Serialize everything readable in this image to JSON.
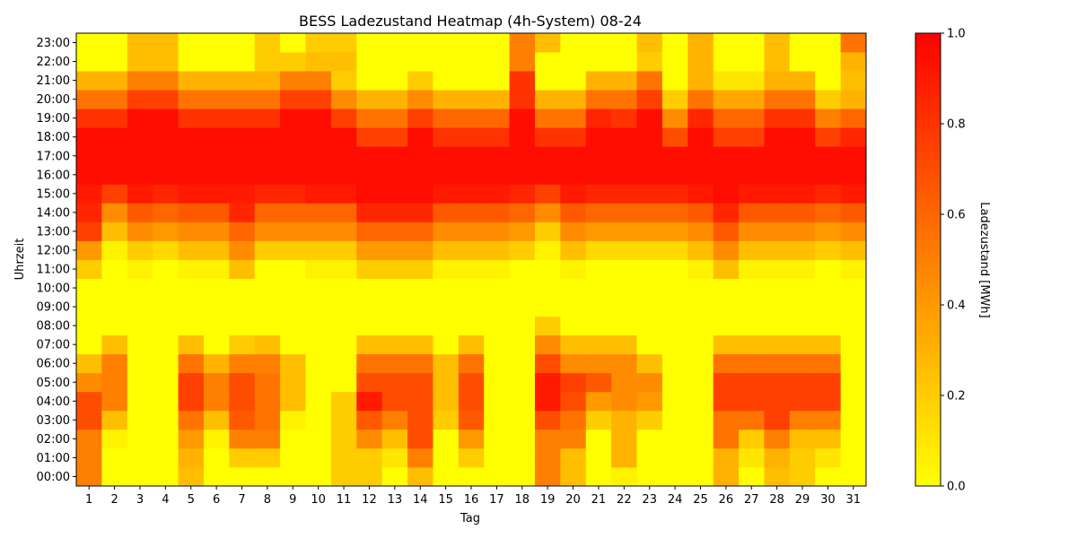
{
  "chart_data": {
    "type": "heatmap",
    "title": "BESS Ladezustand Heatmap (4h-System) 08-24",
    "xlabel": "Tag",
    "ylabel": "Uhrzeit",
    "colorbar_label": "Ladezustand [MWh]",
    "colorbar_ticks": [
      "0.0",
      "0.2",
      "0.4",
      "0.6",
      "0.8",
      "1.0"
    ],
    "vmin": 0.0,
    "vmax": 1.0,
    "colormap": [
      "#ffff00",
      "#ff0000"
    ],
    "x_categories": [
      "1",
      "2",
      "3",
      "4",
      "5",
      "6",
      "7",
      "8",
      "9",
      "10",
      "11",
      "12",
      "13",
      "14",
      "15",
      "16",
      "17",
      "18",
      "19",
      "20",
      "21",
      "22",
      "23",
      "24",
      "25",
      "26",
      "27",
      "28",
      "29",
      "30",
      "31"
    ],
    "y_categories": [
      "00:00",
      "01:00",
      "02:00",
      "03:00",
      "04:00",
      "05:00",
      "06:00",
      "07:00",
      "08:00",
      "09:00",
      "10:00",
      "11:00",
      "12:00",
      "13:00",
      "14:00",
      "15:00",
      "16:00",
      "17:00",
      "18:00",
      "19:00",
      "20:00",
      "21:00",
      "22:00",
      "23:00"
    ],
    "values": [
      [
        0.5,
        0,
        0,
        0,
        0.25,
        0,
        0,
        0,
        0,
        0,
        0.2,
        0.2,
        0,
        0.25,
        0,
        0,
        0,
        0,
        0.5,
        0.25,
        0,
        0.05,
        0,
        0,
        0,
        0.3,
        0,
        0.25,
        0.2,
        0,
        0
      ],
      [
        0.5,
        0,
        0,
        0,
        0.3,
        0,
        0.2,
        0.2,
        0,
        0,
        0.2,
        0.2,
        0.1,
        0.5,
        0,
        0.2,
        0,
        0,
        0.5,
        0.25,
        0,
        0.3,
        0,
        0,
        0,
        0.3,
        0.1,
        0.3,
        0.2,
        0.1,
        0
      ],
      [
        0.5,
        0.05,
        0,
        0,
        0.4,
        0.05,
        0.5,
        0.5,
        0,
        0,
        0.2,
        0.45,
        0.25,
        0.7,
        0,
        0.4,
        0,
        0,
        0.5,
        0.5,
        0,
        0.3,
        0,
        0,
        0,
        0.55,
        0.2,
        0.5,
        0.25,
        0.25,
        0
      ],
      [
        0.7,
        0.25,
        0,
        0,
        0.55,
        0.25,
        0.65,
        0.55,
        0.05,
        0,
        0.2,
        0.65,
        0.5,
        0.7,
        0.2,
        0.65,
        0,
        0,
        0.7,
        0.55,
        0.2,
        0.3,
        0.2,
        0,
        0,
        0.55,
        0.55,
        0.75,
        0.5,
        0.5,
        0
      ],
      [
        0.7,
        0.5,
        0,
        0,
        0.75,
        0.5,
        0.7,
        0.55,
        0.25,
        0,
        0.2,
        0.9,
        0.7,
        0.7,
        0.25,
        0.7,
        0,
        0,
        0.9,
        0.7,
        0.4,
        0.45,
        0.4,
        0,
        0,
        0.75,
        0.75,
        0.75,
        0.75,
        0.75,
        0
      ],
      [
        0.45,
        0.5,
        0,
        0,
        0.75,
        0.5,
        0.7,
        0.55,
        0.25,
        0,
        0,
        0.7,
        0.7,
        0.7,
        0.25,
        0.7,
        0,
        0,
        0.9,
        0.75,
        0.65,
        0.45,
        0.45,
        0,
        0,
        0.75,
        0.75,
        0.75,
        0.75,
        0.75,
        0
      ],
      [
        0.25,
        0.5,
        0,
        0,
        0.55,
        0.3,
        0.5,
        0.5,
        0.25,
        0,
        0,
        0.55,
        0.55,
        0.55,
        0.25,
        0.55,
        0,
        0,
        0.7,
        0.45,
        0.45,
        0.45,
        0.25,
        0,
        0,
        0.55,
        0.55,
        0.55,
        0.55,
        0.55,
        0
      ],
      [
        0,
        0.25,
        0,
        0,
        0.25,
        0,
        0.2,
        0.25,
        0,
        0,
        0,
        0.25,
        0.25,
        0.25,
        0,
        0.25,
        0,
        0,
        0.45,
        0.25,
        0.25,
        0.25,
        0,
        0,
        0,
        0.25,
        0.25,
        0.25,
        0.25,
        0.25,
        0
      ],
      [
        0,
        0,
        0,
        0,
        0,
        0,
        0,
        0,
        0,
        0,
        0,
        0,
        0,
        0,
        0,
        0,
        0,
        0,
        0.2,
        0,
        0,
        0,
        0,
        0,
        0,
        0,
        0,
        0,
        0,
        0,
        0
      ],
      [
        0,
        0,
        0,
        0,
        0,
        0,
        0,
        0,
        0,
        0,
        0,
        0,
        0,
        0,
        0,
        0,
        0,
        0,
        0,
        0,
        0,
        0,
        0,
        0,
        0,
        0,
        0,
        0,
        0,
        0,
        0
      ],
      [
        0,
        0,
        0,
        0,
        0,
        0,
        0,
        0,
        0,
        0,
        0,
        0,
        0,
        0,
        0,
        0,
        0,
        0,
        0,
        0,
        0,
        0,
        0,
        0,
        0,
        0,
        0,
        0,
        0,
        0,
        0
      ],
      [
        0.2,
        0,
        0.05,
        0,
        0.05,
        0.05,
        0.25,
        0,
        0,
        0.05,
        0.05,
        0.2,
        0.2,
        0.2,
        0.05,
        0.05,
        0.05,
        0,
        0,
        0.05,
        0,
        0,
        0,
        0,
        0.05,
        0.25,
        0.05,
        0.05,
        0.05,
        0,
        0.05
      ],
      [
        0.4,
        0.05,
        0.2,
        0.15,
        0.25,
        0.25,
        0.45,
        0.2,
        0.2,
        0.2,
        0.2,
        0.4,
        0.4,
        0.4,
        0.25,
        0.25,
        0.25,
        0.2,
        0.05,
        0.25,
        0.15,
        0.15,
        0.15,
        0.15,
        0.25,
        0.45,
        0.25,
        0.25,
        0.25,
        0.2,
        0.25
      ],
      [
        0.75,
        0.25,
        0.45,
        0.4,
        0.45,
        0.45,
        0.6,
        0.45,
        0.45,
        0.45,
        0.45,
        0.6,
        0.6,
        0.6,
        0.45,
        0.45,
        0.45,
        0.4,
        0.2,
        0.45,
        0.4,
        0.4,
        0.4,
        0.4,
        0.45,
        0.65,
        0.45,
        0.45,
        0.45,
        0.4,
        0.45
      ],
      [
        0.85,
        0.45,
        0.65,
        0.6,
        0.65,
        0.65,
        0.85,
        0.6,
        0.6,
        0.6,
        0.6,
        0.85,
        0.85,
        0.85,
        0.65,
        0.65,
        0.65,
        0.6,
        0.45,
        0.65,
        0.6,
        0.6,
        0.6,
        0.6,
        0.65,
        0.85,
        0.65,
        0.65,
        0.65,
        0.6,
        0.65
      ],
      [
        0.9,
        0.75,
        0.9,
        0.85,
        0.9,
        0.9,
        0.9,
        0.85,
        0.85,
        0.9,
        0.9,
        0.95,
        0.95,
        0.95,
        0.9,
        0.9,
        0.9,
        0.85,
        0.75,
        0.9,
        0.85,
        0.85,
        0.85,
        0.85,
        0.9,
        0.95,
        0.9,
        0.9,
        0.9,
        0.85,
        0.9
      ],
      [
        0.95,
        0.95,
        0.95,
        0.95,
        0.95,
        0.95,
        0.95,
        0.95,
        0.95,
        0.95,
        0.95,
        0.95,
        0.95,
        0.95,
        0.95,
        0.95,
        0.95,
        0.95,
        0.95,
        0.95,
        0.95,
        0.95,
        0.95,
        0.95,
        0.95,
        0.95,
        0.95,
        0.95,
        0.95,
        0.95,
        0.95
      ],
      [
        0.95,
        0.95,
        0.95,
        0.95,
        0.95,
        0.95,
        0.95,
        0.95,
        0.95,
        0.95,
        0.95,
        0.95,
        0.95,
        0.95,
        0.95,
        0.95,
        0.95,
        0.95,
        0.95,
        0.95,
        0.95,
        0.95,
        0.95,
        0.95,
        0.95,
        0.95,
        0.95,
        0.95,
        0.95,
        0.95,
        0.95
      ],
      [
        0.95,
        0.95,
        0.95,
        0.95,
        0.95,
        0.95,
        0.95,
        0.95,
        0.95,
        0.95,
        0.95,
        0.75,
        0.75,
        0.95,
        0.8,
        0.8,
        0.8,
        0.95,
        0.8,
        0.8,
        0.95,
        0.95,
        0.95,
        0.7,
        0.95,
        0.75,
        0.75,
        0.95,
        0.95,
        0.75,
        0.85
      ],
      [
        0.8,
        0.8,
        0.95,
        0.95,
        0.8,
        0.8,
        0.8,
        0.8,
        0.95,
        0.95,
        0.75,
        0.55,
        0.55,
        0.75,
        0.6,
        0.6,
        0.6,
        0.95,
        0.55,
        0.55,
        0.85,
        0.8,
        0.95,
        0.45,
        0.85,
        0.6,
        0.6,
        0.8,
        0.8,
        0.5,
        0.6
      ],
      [
        0.55,
        0.55,
        0.75,
        0.75,
        0.55,
        0.55,
        0.55,
        0.55,
        0.75,
        0.75,
        0.45,
        0.3,
        0.3,
        0.45,
        0.3,
        0.3,
        0.3,
        0.8,
        0.3,
        0.3,
        0.55,
        0.55,
        0.75,
        0.2,
        0.55,
        0.35,
        0.35,
        0.55,
        0.55,
        0.2,
        0.3
      ],
      [
        0.3,
        0.3,
        0.5,
        0.5,
        0.3,
        0.3,
        0.3,
        0.3,
        0.5,
        0.5,
        0.2,
        0,
        0,
        0.2,
        0,
        0,
        0,
        0.8,
        0,
        0,
        0.3,
        0.3,
        0.55,
        0,
        0.3,
        0.1,
        0.1,
        0.3,
        0.3,
        0,
        0.25
      ],
      [
        0,
        0,
        0.25,
        0.25,
        0,
        0,
        0,
        0.2,
        0.2,
        0.25,
        0.25,
        0,
        0,
        0,
        0,
        0,
        0,
        0.5,
        0,
        0,
        0,
        0,
        0.2,
        0,
        0.3,
        0,
        0,
        0.25,
        0,
        0,
        0.3
      ],
      [
        0,
        0,
        0.25,
        0.25,
        0,
        0,
        0,
        0.2,
        0,
        0.2,
        0.2,
        0,
        0,
        0,
        0,
        0,
        0,
        0.5,
        0.25,
        0,
        0,
        0,
        0.25,
        0,
        0.3,
        0,
        0,
        0.25,
        0,
        0,
        0.55
      ]
    ]
  }
}
